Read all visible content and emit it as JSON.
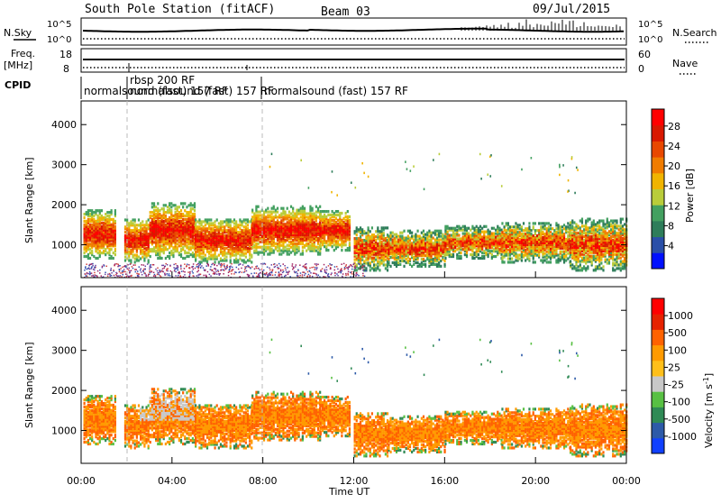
{
  "header": {
    "station": "South Pole Station (fitACF)",
    "beam": "Beam 03",
    "date": "09/Jul/2015"
  },
  "status_panels": {
    "nsky_label": "N.Sky",
    "nsearch_label": "N.Search",
    "freq_label_1": "Freq.",
    "freq_label_2": "[MHz]",
    "nave_label": "Nave",
    "cpid_label": "CPID",
    "nsky_ticks": [
      "10^5",
      "10^0"
    ],
    "nsearch_ticks": [
      "10^5",
      "10^0"
    ],
    "freq_ticks": [
      "18",
      "8"
    ],
    "nave_ticks": [
      "60",
      "0"
    ],
    "cpid_segments": [
      {
        "label": "normalsound (fast) 157 RF",
        "start_hour": 0.0
      },
      {
        "label": "rbsp 200 RF",
        "start_hour": 1.9
      },
      {
        "label": "normalsound (fast) 157 RF",
        "start_hour": 1.9
      },
      {
        "label": "normalsound (fast) 157 RF",
        "start_hour": 8.0
      }
    ]
  },
  "chart_data": [
    {
      "type": "heatmap",
      "name": "power",
      "ylabel": "Slant Range [km]",
      "xlabel": "",
      "ylim": [
        180,
        4590
      ],
      "yticks": [
        1000,
        2000,
        3000,
        4000
      ],
      "xlim_hours": [
        0,
        24
      ],
      "colorbar": {
        "label": "Power [dB]",
        "ticks": [
          "28",
          "24",
          "20",
          "16",
          "12",
          "8",
          "4"
        ],
        "colors": [
          "#0010ff",
          "#2a4fa8",
          "#2e7d5a",
          "#43a060",
          "#b9cc3a",
          "#f0b400",
          "#f07c00",
          "#e84800",
          "#d81800",
          "#ff0000"
        ]
      },
      "scatter_bands": [
        {
          "start_hour": 0.1,
          "end_hour": 1.5,
          "min_range": 700,
          "max_range": 1900
        },
        {
          "start_hour": 1.9,
          "end_hour": 3.0,
          "min_range": 600,
          "max_range": 1700
        },
        {
          "start_hour": 3.0,
          "end_hour": 5.0,
          "min_range": 700,
          "max_range": 2100
        },
        {
          "start_hour": 5.0,
          "end_hour": 7.5,
          "min_range": 600,
          "max_range": 1700
        },
        {
          "start_hour": 7.5,
          "end_hour": 10.5,
          "min_range": 800,
          "max_range": 2000
        },
        {
          "start_hour": 10.5,
          "end_hour": 11.8,
          "min_range": 900,
          "max_range": 1900
        },
        {
          "start_hour": 12.0,
          "end_hour": 13.5,
          "min_range": 400,
          "max_range": 1500
        },
        {
          "start_hour": 13.5,
          "end_hour": 16.0,
          "min_range": 500,
          "max_range": 1400
        },
        {
          "start_hour": 16.0,
          "end_hour": 18.5,
          "min_range": 700,
          "max_range": 1500
        },
        {
          "start_hour": 18.5,
          "end_hour": 21.5,
          "min_range": 600,
          "max_range": 1600
        },
        {
          "start_hour": 21.5,
          "end_hour": 24.0,
          "min_range": 400,
          "max_range": 1700
        }
      ]
    },
    {
      "type": "heatmap",
      "name": "velocity",
      "ylabel": "Slant Range [km]",
      "xlabel": "Time UT",
      "ylim": [
        180,
        4590
      ],
      "yticks": [
        1000,
        2000,
        3000,
        4000
      ],
      "xlim_hours": [
        0,
        24
      ],
      "xticks": [
        "00:00",
        "04:00",
        "08:00",
        "12:00",
        "16:00",
        "20:00",
        "00:00"
      ],
      "colorbar": {
        "label": "Velocity [m s",
        "label_sup": "-1",
        "label_end": "]",
        "ticks": [
          "1000",
          "500",
          "100",
          "25",
          "-25",
          "-100",
          "-500",
          "-1000"
        ],
        "colors": [
          "#1040ff",
          "#2d5aa8",
          "#2f8a55",
          "#58c043",
          "#c8c8c8",
          "#ffbf1a",
          "#ff9a00",
          "#ff6200",
          "#e62200",
          "#ff0000"
        ]
      }
    }
  ]
}
